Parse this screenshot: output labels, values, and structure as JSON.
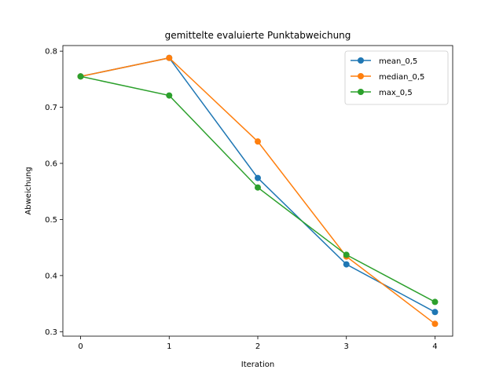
{
  "chart_data": {
    "type": "line",
    "title": "gemittelte evaluierte Punktabweichung",
    "xlabel": "Iteration",
    "ylabel": "Abweichung",
    "x": [
      0,
      1,
      2,
      3,
      4
    ],
    "xticks": [
      "0",
      "1",
      "2",
      "3",
      "4"
    ],
    "yticks": [
      "0.3",
      "0.4",
      "0.5",
      "0.6",
      "0.7",
      "0.8"
    ],
    "xlim": [
      -0.2,
      4.2
    ],
    "ylim": [
      0.292,
      0.81
    ],
    "grid": false,
    "legend_position": "top-right",
    "series": [
      {
        "name": "mean_0,5",
        "color": "#1f77b4",
        "values": [
          0.755,
          0.788,
          0.574,
          0.42,
          0.335
        ]
      },
      {
        "name": "median_0,5",
        "color": "#ff7f0e",
        "values": [
          0.755,
          0.788,
          0.639,
          0.434,
          0.314
        ]
      },
      {
        "name": "max_0,5",
        "color": "#2ca02c",
        "values": [
          0.755,
          0.721,
          0.557,
          0.437,
          0.353
        ]
      }
    ]
  }
}
